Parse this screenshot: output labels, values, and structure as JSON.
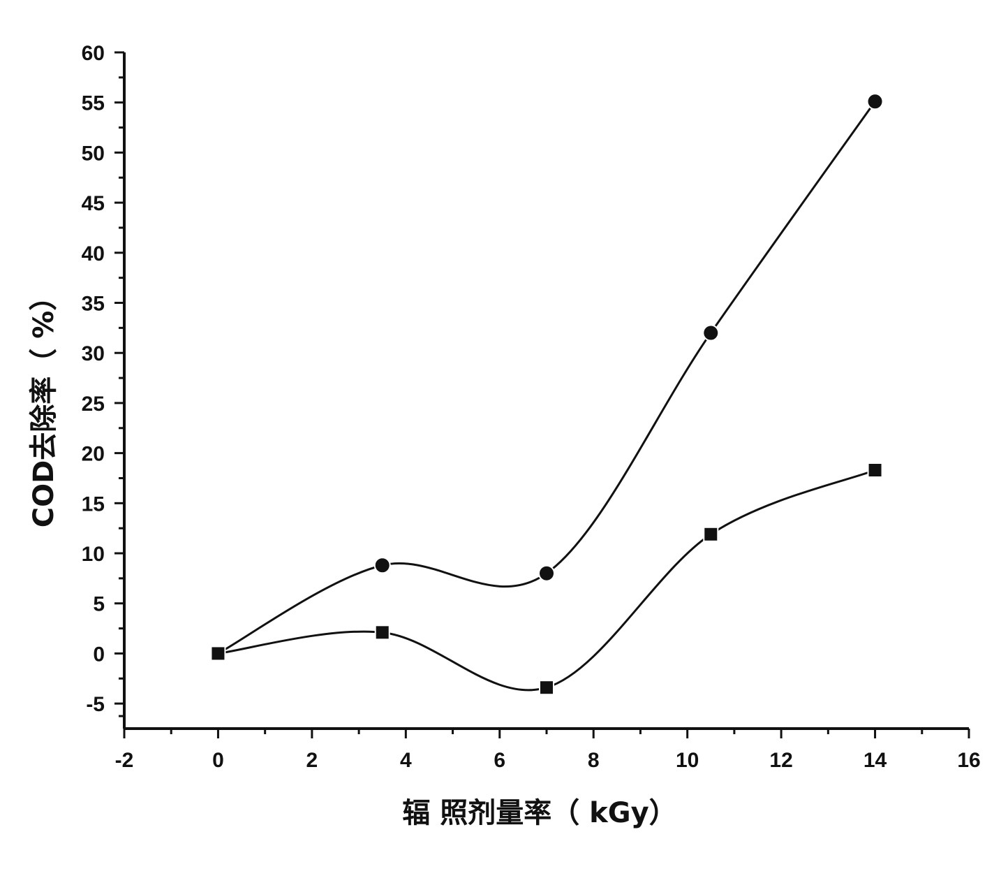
{
  "chart_data": {
    "type": "line",
    "title": "",
    "xlabel": "辐 照剂量率（ kGy）",
    "ylabel": "COD去除率（ %）",
    "xlim": [
      -2,
      16
    ],
    "ylim": [
      -7.5,
      60
    ],
    "x_ticks": [
      -2,
      0,
      2,
      4,
      6,
      8,
      10,
      12,
      14,
      16
    ],
    "y_ticks": [
      -5,
      0,
      5,
      10,
      15,
      20,
      25,
      30,
      35,
      40,
      45,
      50,
      55,
      60
    ],
    "grid": false,
    "legend": "none",
    "smooth": true,
    "colors": {
      "line": "#111111",
      "axis": "#111111"
    },
    "series": [
      {
        "marker": "circle",
        "x": [
          0,
          3.5,
          7,
          10.5,
          14
        ],
        "y": [
          0,
          8.8,
          8,
          32,
          55.1
        ]
      },
      {
        "marker": "square",
        "x": [
          0,
          3.5,
          7,
          10.5,
          14
        ],
        "y": [
          0,
          2.1,
          -3.4,
          11.9,
          18.3
        ]
      }
    ]
  }
}
